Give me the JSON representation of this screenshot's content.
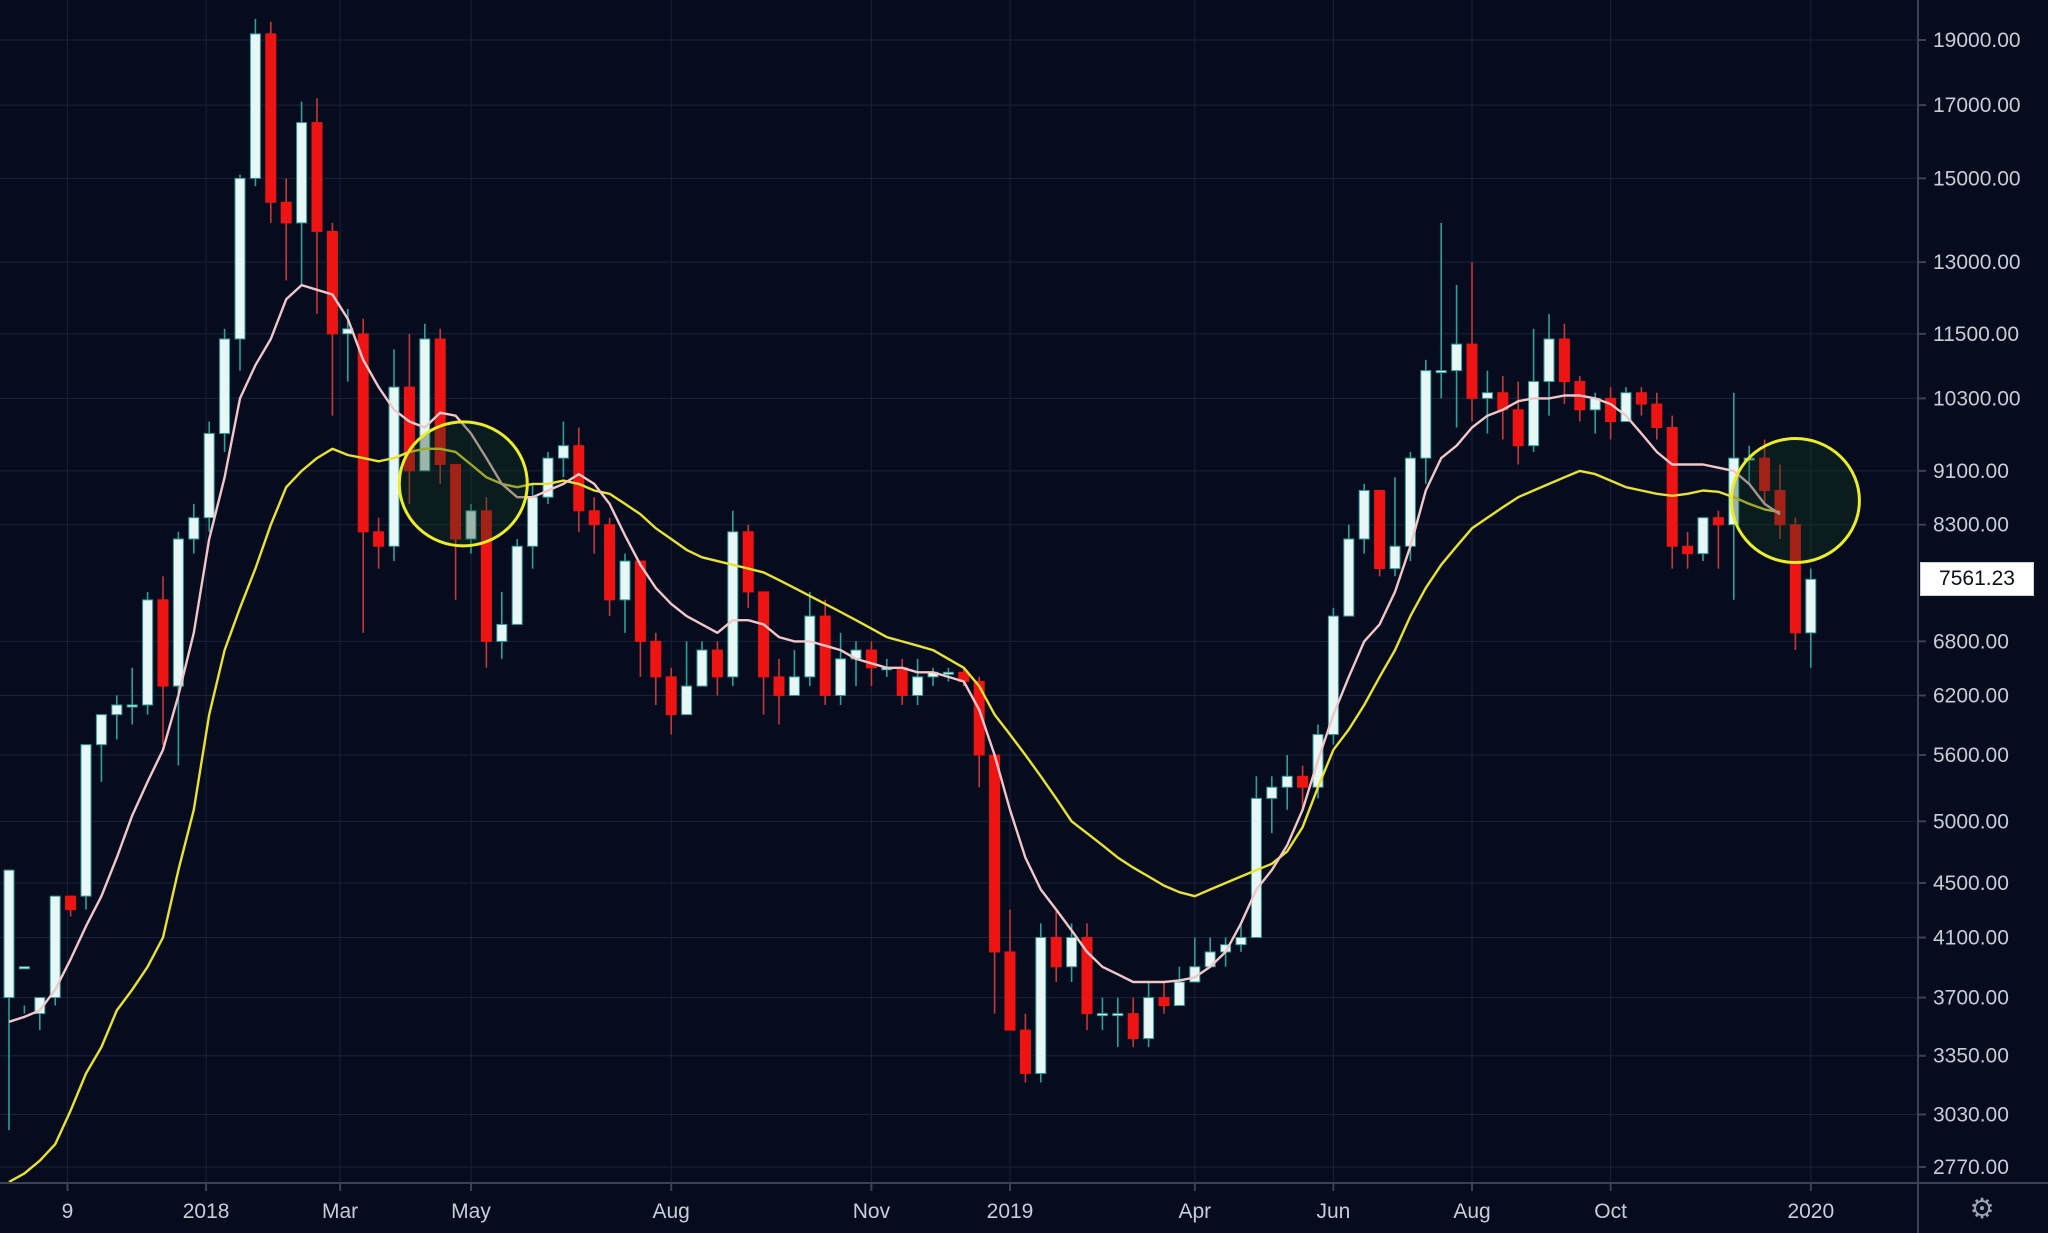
{
  "chart_data": {
    "type": "candlestick",
    "scale": "log",
    "grid": true,
    "colors": {
      "background": "#060c1e",
      "grid": "#1a2238",
      "up": "#e9f6f6",
      "up_outline": "#2c9f9a",
      "down": "#ee1414",
      "wick": "#c43838",
      "ma_fast": "#f1c6c9",
      "ma_slow": "#e9e22f",
      "highlight_circle": "#eded25",
      "axis_text": "#c8ccd6"
    },
    "y_ticks": [
      19000,
      17000,
      15000,
      13000,
      11500,
      10300,
      9100,
      8300,
      6800,
      6200,
      5600,
      5000,
      4500,
      4100,
      3700,
      3350,
      3030,
      2770
    ],
    "y_tick_labels": [
      "19000.00",
      "17000.00",
      "15000.00",
      "13000.00",
      "11500.00",
      "10300.00",
      "9100.00",
      "8300.00",
      "6800.00",
      "6200.00",
      "5600.00",
      "5000.00",
      "4500.00",
      "4100.00",
      "3700.00",
      "3350.00",
      "3030.00",
      "2770.00"
    ],
    "x_ticks": [
      {
        "label": "9",
        "index": 3.8
      },
      {
        "label": "2018",
        "index": 12.8
      },
      {
        "label": "Mar",
        "index": 21.5
      },
      {
        "label": "May",
        "index": 30.0
      },
      {
        "label": "Aug",
        "index": 43.0
      },
      {
        "label": "Nov",
        "index": 56.0
      },
      {
        "label": "2019",
        "index": 65.0
      },
      {
        "label": "Apr",
        "index": 77.0
      },
      {
        "label": "Jun",
        "index": 86.0
      },
      {
        "label": "Aug",
        "index": 95.0
      },
      {
        "label": "Oct",
        "index": 104.0
      },
      {
        "label": "2020",
        "index": 117.0
      }
    ],
    "last_price": "7561.23",
    "candles": [
      [
        3700,
        4600,
        3900,
        2950
      ],
      [
        3900,
        3900,
        3600,
        3650
      ],
      [
        3600,
        3700,
        3700,
        3500
      ],
      [
        3700,
        4400,
        4400,
        3650
      ],
      [
        4400,
        4300,
        4400,
        4250
      ],
      [
        4400,
        5700,
        5700,
        4300
      ],
      [
        5700,
        6000,
        6000,
        5350
      ],
      [
        6000,
        6100,
        6200,
        5750
      ],
      [
        6100,
        6100,
        6500,
        5900
      ],
      [
        6100,
        7300,
        7400,
        6000
      ],
      [
        7300,
        6300,
        7600,
        5700
      ],
      [
        6300,
        8100,
        8200,
        5500
      ],
      [
        8100,
        8400,
        8600,
        7900
      ],
      [
        8400,
        9700,
        9900,
        8200
      ],
      [
        9700,
        11400,
        11600,
        9400
      ],
      [
        11400,
        15000,
        15100,
        10800
      ],
      [
        15000,
        19200,
        19700,
        14800
      ],
      [
        19200,
        14400,
        19600,
        13900
      ],
      [
        14400,
        13900,
        15000,
        12600
      ],
      [
        13900,
        16500,
        17100,
        12500
      ],
      [
        16500,
        13700,
        17200,
        11900
      ],
      [
        13700,
        11500,
        13900,
        10000
      ],
      [
        11500,
        11600,
        12000,
        10600
      ],
      [
        11500,
        8200,
        11800,
        6900
      ],
      [
        8200,
        8000,
        8400,
        7700
      ],
      [
        8000,
        10500,
        11200,
        7800
      ],
      [
        10500,
        9100,
        11500,
        8600
      ],
      [
        9100,
        11400,
        11700,
        9300
      ],
      [
        11400,
        9200,
        11600,
        8900
      ],
      [
        9200,
        8100,
        9200,
        7300
      ],
      [
        8100,
        8500,
        8600,
        7900
      ],
      [
        8500,
        6800,
        8700,
        6500
      ],
      [
        6800,
        7000,
        7400,
        6600
      ],
      [
        7000,
        8000,
        8100,
        7000
      ],
      [
        8000,
        8700,
        8900,
        7700
      ],
      [
        8700,
        9300,
        9400,
        8600
      ],
      [
        9300,
        9500,
        9900,
        9000
      ],
      [
        9500,
        8500,
        9800,
        8200
      ],
      [
        8500,
        8300,
        8700,
        7900
      ],
      [
        8300,
        7300,
        8400,
        7100
      ],
      [
        7300,
        7800,
        7900,
        6900
      ],
      [
        7800,
        6800,
        7800,
        6400
      ],
      [
        6800,
        6400,
        6900,
        6100
      ],
      [
        6400,
        6000,
        6500,
        5800
      ],
      [
        6000,
        6300,
        6800,
        6100
      ],
      [
        6300,
        6700,
        6800,
        6300
      ],
      [
        6700,
        6400,
        6800,
        6200
      ],
      [
        6400,
        8200,
        8500,
        6300
      ],
      [
        8200,
        7400,
        8300,
        7200
      ],
      [
        7400,
        6400,
        7400,
        6000
      ],
      [
        6400,
        6200,
        6600,
        5900
      ],
      [
        6200,
        6400,
        6700,
        6200
      ],
      [
        6400,
        7100,
        7400,
        6300
      ],
      [
        7100,
        6200,
        7300,
        6100
      ],
      [
        6200,
        6600,
        6900,
        6100
      ],
      [
        6600,
        6700,
        6800,
        6300
      ],
      [
        6700,
        6500,
        6800,
        6300
      ],
      [
        6500,
        6500,
        6600,
        6400
      ],
      [
        6500,
        6200,
        6600,
        6100
      ],
      [
        6200,
        6400,
        6600,
        6100
      ],
      [
        6400,
        6450,
        6500,
        6300
      ],
      [
        6450,
        6450,
        6500,
        6350
      ],
      [
        6450,
        6350,
        6500,
        6300
      ],
      [
        6350,
        5600,
        6400,
        5300
      ],
      [
        5600,
        4000,
        5600,
        3600
      ],
      [
        4000,
        3500,
        4300,
        3500
      ],
      [
        3500,
        3250,
        3600,
        3200
      ],
      [
        3250,
        4100,
        4200,
        3200
      ],
      [
        4100,
        3900,
        4300,
        3800
      ],
      [
        3900,
        4100,
        4200,
        3800
      ],
      [
        4100,
        3600,
        4200,
        3500
      ],
      [
        3600,
        3600,
        3700,
        3500
      ],
      [
        3600,
        3600,
        3700,
        3400
      ],
      [
        3600,
        3450,
        3700,
        3400
      ],
      [
        3450,
        3700,
        3800,
        3400
      ],
      [
        3700,
        3650,
        3800,
        3600
      ],
      [
        3650,
        3800,
        3900,
        3700
      ],
      [
        3800,
        3900,
        4100,
        3800
      ],
      [
        3900,
        4000,
        4100,
        3900
      ],
      [
        4000,
        4050,
        4100,
        3900
      ],
      [
        4050,
        4100,
        4200,
        4000
      ],
      [
        4100,
        5200,
        5400,
        4100
      ],
      [
        5200,
        5300,
        5400,
        4900
      ],
      [
        5300,
        5400,
        5600,
        5100
      ],
      [
        5400,
        5300,
        5500,
        5100
      ],
      [
        5300,
        5800,
        5900,
        5200
      ],
      [
        5800,
        7100,
        7200,
        5700
      ],
      [
        7100,
        8100,
        8300,
        7100
      ],
      [
        8100,
        8800,
        8900,
        7900
      ],
      [
        8800,
        7700,
        8800,
        7600
      ],
      [
        7700,
        8000,
        9000,
        7600
      ],
      [
        8000,
        9300,
        9400,
        7800
      ],
      [
        9300,
        10800,
        11000,
        8900
      ],
      [
        10800,
        10800,
        13900,
        10300
      ],
      [
        10800,
        11300,
        12500,
        9800
      ],
      [
        11300,
        10300,
        13000,
        9900
      ],
      [
        10300,
        10400,
        10800,
        9700
      ],
      [
        10400,
        10100,
        10700,
        9600
      ],
      [
        10100,
        9500,
        10600,
        9200
      ],
      [
        9500,
        10600,
        11600,
        9400
      ],
      [
        10600,
        11400,
        11900,
        10000
      ],
      [
        11400,
        10600,
        11700,
        10200
      ],
      [
        10600,
        10100,
        10700,
        9900
      ],
      [
        10100,
        10300,
        10400,
        9700
      ],
      [
        10300,
        9900,
        10500,
        9600
      ],
      [
        9900,
        10400,
        10500,
        10000
      ],
      [
        10400,
        10200,
        10500,
        10000
      ],
      [
        10200,
        9800,
        10400,
        9600
      ],
      [
        9800,
        8000,
        10000,
        7700
      ],
      [
        8000,
        7900,
        8200,
        7700
      ],
      [
        7900,
        8400,
        8400,
        7800
      ],
      [
        8400,
        8300,
        8500,
        7700
      ],
      [
        8300,
        9300,
        10400,
        7300
      ],
      [
        9300,
        9300,
        9500,
        8900
      ],
      [
        9300,
        8800,
        9600,
        8600
      ],
      [
        8800,
        8300,
        9200,
        8100
      ],
      [
        8300,
        6900,
        8400,
        6700
      ],
      [
        6900,
        7561,
        7700,
        6500
      ]
    ],
    "ma_fast": [
      3550,
      3580,
      3620,
      3750,
      3950,
      4180,
      4400,
      4700,
      5050,
      5350,
      5650,
      6200,
      6900,
      8100,
      9000,
      10300,
      10900,
      11400,
      12200,
      12500,
      12400,
      12300,
      11800,
      11000,
      10500,
      10100,
      9900,
      9800,
      10050,
      10000,
      9700,
      9300,
      8900,
      8700,
      8700,
      8800,
      8900,
      9050,
      8900,
      8600,
      8150,
      7750,
      7450,
      7250,
      7100,
      7000,
      6900,
      7050,
      7050,
      7000,
      6850,
      6800,
      6800,
      6750,
      6700,
      6600,
      6550,
      6500,
      6500,
      6450,
      6450,
      6400,
      6350,
      6050,
      5600,
      5100,
      4700,
      4450,
      4300,
      4150,
      4000,
      3900,
      3850,
      3800,
      3800,
      3800,
      3810,
      3830,
      3900,
      4000,
      4200,
      4450,
      4600,
      4800,
      5100,
      5550,
      6000,
      6400,
      6800,
      7000,
      7400,
      8000,
      8800,
      9300,
      9500,
      9800,
      10000,
      10100,
      10250,
      10300,
      10300,
      10350,
      10350,
      10300,
      10200,
      10000,
      9700,
      9400,
      9200,
      9200,
      9200,
      9150,
      9100,
      8900,
      8600,
      8450
    ],
    "ma_slow": [
      2700,
      2740,
      2800,
      2880,
      3050,
      3250,
      3400,
      3620,
      3750,
      3900,
      4100,
      4600,
      5100,
      6000,
      6700,
      7200,
      7700,
      8300,
      8850,
      9100,
      9300,
      9450,
      9350,
      9300,
      9250,
      9300,
      9400,
      9450,
      9450,
      9400,
      9200,
      9000,
      8900,
      8850,
      8900,
      8900,
      8950,
      8900,
      8800,
      8750,
      8600,
      8450,
      8250,
      8100,
      7950,
      7850,
      7800,
      7750,
      7700,
      7650,
      7550,
      7450,
      7350,
      7250,
      7150,
      7050,
      6950,
      6850,
      6800,
      6750,
      6700,
      6600,
      6500,
      6300,
      6000,
      5800,
      5600,
      5400,
      5200,
      5000,
      4900,
      4800,
      4700,
      4620,
      4550,
      4480,
      4430,
      4400,
      4450,
      4500,
      4550,
      4600,
      4650,
      4750,
      4950,
      5300,
      5650,
      5850,
      6100,
      6400,
      6700,
      7100,
      7450,
      7750,
      8000,
      8250,
      8400,
      8550,
      8700,
      8800,
      8900,
      9000,
      9100,
      9050,
      8950,
      8850,
      8800,
      8750,
      8720,
      8750,
      8800,
      8780,
      8700,
      8600,
      8520,
      8480
    ],
    "highlight_circles": [
      {
        "center_index": 29.5,
        "center_price": 8900
      },
      {
        "center_index": 116.0,
        "center_price": 8650
      }
    ]
  },
  "ui": {
    "settings_icon": "gear-icon",
    "settings_glyph": "⚙"
  }
}
